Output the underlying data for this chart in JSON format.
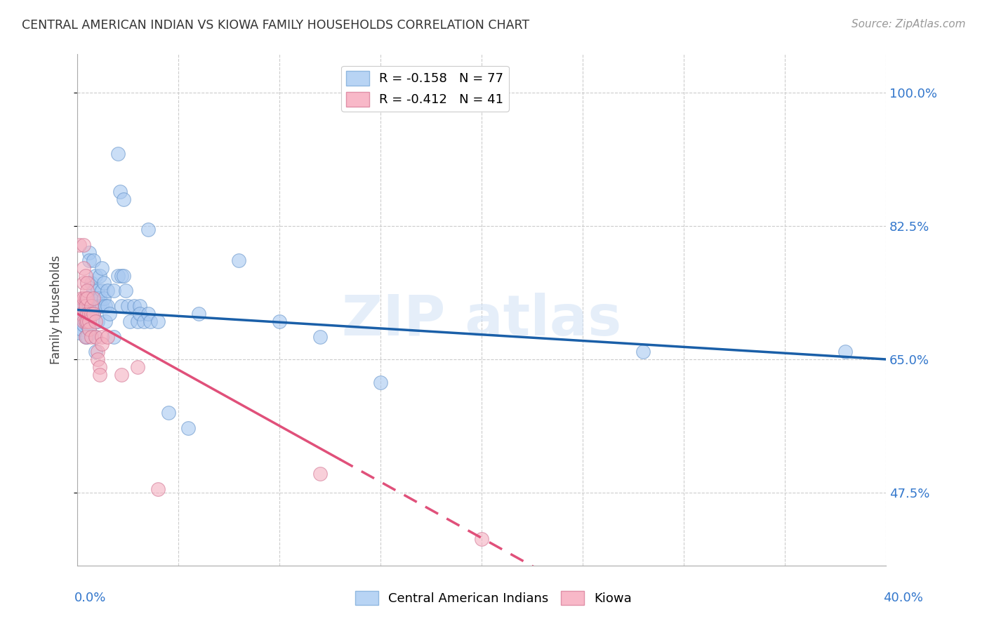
{
  "title": "CENTRAL AMERICAN INDIAN VS KIOWA FAMILY HOUSEHOLDS CORRELATION CHART",
  "source": "Source: ZipAtlas.com",
  "ylabel": "Family Households",
  "y_tick_labels": [
    "47.5%",
    "65.0%",
    "82.5%",
    "100.0%"
  ],
  "y_tick_values": [
    47.5,
    65.0,
    82.5,
    100.0
  ],
  "x_min": 0.0,
  "x_max": 40.0,
  "y_min": 38.0,
  "y_max": 105.0,
  "blue_color": "#a8c8f0",
  "pink_color": "#f4b0c0",
  "blue_line_color": "#1a5fa8",
  "pink_line_color": "#e0507a",
  "blue_points": [
    [
      0.1,
      68.5
    ],
    [
      0.2,
      71.0
    ],
    [
      0.2,
      69.0
    ],
    [
      0.3,
      69.5
    ],
    [
      0.3,
      72.0
    ],
    [
      0.4,
      68.0
    ],
    [
      0.4,
      72.0
    ],
    [
      0.4,
      71.0
    ],
    [
      0.5,
      73.0
    ],
    [
      0.5,
      70.0
    ],
    [
      0.5,
      69.5
    ],
    [
      0.5,
      68.0
    ],
    [
      0.6,
      79.0
    ],
    [
      0.6,
      78.0
    ],
    [
      0.6,
      73.0
    ],
    [
      0.6,
      72.0
    ],
    [
      0.6,
      71.0
    ],
    [
      0.6,
      70.0
    ],
    [
      0.6,
      69.0
    ],
    [
      0.7,
      75.0
    ],
    [
      0.7,
      73.0
    ],
    [
      0.7,
      72.0
    ],
    [
      0.8,
      78.0
    ],
    [
      0.8,
      74.0
    ],
    [
      0.8,
      72.0
    ],
    [
      0.8,
      71.0
    ],
    [
      0.9,
      76.0
    ],
    [
      0.9,
      73.0
    ],
    [
      0.9,
      68.0
    ],
    [
      0.9,
      66.0
    ],
    [
      1.0,
      74.0
    ],
    [
      1.0,
      73.0
    ],
    [
      1.0,
      72.0
    ],
    [
      1.0,
      70.0
    ],
    [
      1.1,
      76.0
    ],
    [
      1.1,
      73.0
    ],
    [
      1.1,
      72.0
    ],
    [
      1.2,
      77.0
    ],
    [
      1.2,
      74.0
    ],
    [
      1.2,
      72.0
    ],
    [
      1.3,
      75.0
    ],
    [
      1.3,
      73.0
    ],
    [
      1.4,
      72.0
    ],
    [
      1.4,
      70.0
    ],
    [
      1.5,
      74.0
    ],
    [
      1.5,
      72.0
    ],
    [
      1.6,
      71.0
    ],
    [
      1.8,
      74.0
    ],
    [
      1.8,
      68.0
    ],
    [
      2.0,
      92.0
    ],
    [
      2.0,
      76.0
    ],
    [
      2.1,
      87.0
    ],
    [
      2.2,
      76.0
    ],
    [
      2.2,
      72.0
    ],
    [
      2.3,
      86.0
    ],
    [
      2.3,
      76.0
    ],
    [
      2.4,
      74.0
    ],
    [
      2.5,
      72.0
    ],
    [
      2.6,
      70.0
    ],
    [
      2.8,
      72.0
    ],
    [
      3.0,
      70.0
    ],
    [
      3.1,
      72.0
    ],
    [
      3.1,
      71.0
    ],
    [
      3.3,
      70.0
    ],
    [
      3.5,
      82.0
    ],
    [
      3.5,
      71.0
    ],
    [
      3.6,
      70.0
    ],
    [
      4.0,
      70.0
    ],
    [
      4.5,
      58.0
    ],
    [
      5.5,
      56.0
    ],
    [
      6.0,
      71.0
    ],
    [
      8.0,
      78.0
    ],
    [
      10.0,
      70.0
    ],
    [
      12.0,
      68.0
    ],
    [
      15.0,
      62.0
    ],
    [
      28.0,
      66.0
    ],
    [
      38.0,
      66.0
    ]
  ],
  "pink_points": [
    [
      0.1,
      80.0
    ],
    [
      0.2,
      73.0
    ],
    [
      0.2,
      72.0
    ],
    [
      0.2,
      71.0
    ],
    [
      0.3,
      80.0
    ],
    [
      0.3,
      77.0
    ],
    [
      0.3,
      75.0
    ],
    [
      0.3,
      73.0
    ],
    [
      0.3,
      70.0
    ],
    [
      0.4,
      76.0
    ],
    [
      0.4,
      73.0
    ],
    [
      0.4,
      72.0
    ],
    [
      0.4,
      70.0
    ],
    [
      0.4,
      68.0
    ],
    [
      0.5,
      75.0
    ],
    [
      0.5,
      74.0
    ],
    [
      0.5,
      73.0
    ],
    [
      0.5,
      71.0
    ],
    [
      0.5,
      70.0
    ],
    [
      0.6,
      71.0
    ],
    [
      0.6,
      70.0
    ],
    [
      0.6,
      69.0
    ],
    [
      0.7,
      72.0
    ],
    [
      0.7,
      71.0
    ],
    [
      0.7,
      68.0
    ],
    [
      0.8,
      73.0
    ],
    [
      0.8,
      71.0
    ],
    [
      0.9,
      70.0
    ],
    [
      0.9,
      68.0
    ],
    [
      1.0,
      66.0
    ],
    [
      1.0,
      65.0
    ],
    [
      1.1,
      64.0
    ],
    [
      1.1,
      63.0
    ],
    [
      1.2,
      68.0
    ],
    [
      1.2,
      67.0
    ],
    [
      1.5,
      68.0
    ],
    [
      2.2,
      63.0
    ],
    [
      3.0,
      64.0
    ],
    [
      4.0,
      48.0
    ],
    [
      12.0,
      50.0
    ],
    [
      20.0,
      41.5
    ]
  ],
  "blue_r": -0.158,
  "blue_n": 77,
  "pink_r": -0.412,
  "pink_n": 41,
  "blue_intercept": 71.5,
  "blue_slope": -0.162,
  "pink_intercept": 71.0,
  "pink_slope": -1.47,
  "pink_solid_end": 13.0
}
